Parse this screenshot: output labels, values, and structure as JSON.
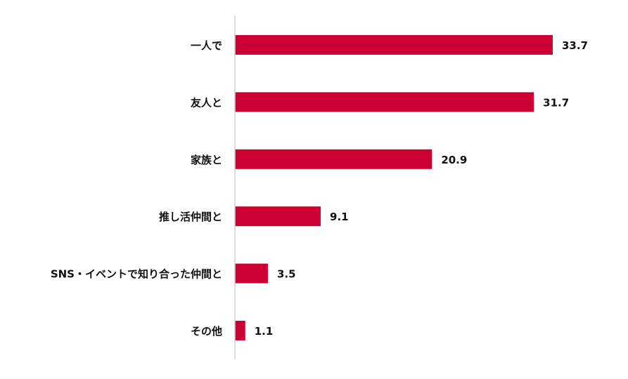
{
  "chart_data": {
    "type": "bar",
    "orientation": "horizontal",
    "categories": [
      "一人で",
      "友人と",
      "家族と",
      "推し活仲間と",
      "SNS・イベントで知り合った仲間と",
      "その他"
    ],
    "values": [
      33.7,
      31.7,
      20.9,
      9.1,
      3.5,
      1.1
    ],
    "value_labels": [
      "33.7",
      "31.7",
      "20.9",
      "9.1",
      "3.5",
      "1.1"
    ],
    "title": "",
    "xlabel": "",
    "ylabel": "",
    "xlim": [
      0,
      40
    ],
    "grid": false,
    "legend": "none",
    "colors": {
      "bar": "#CC0033",
      "axis": "#D0D0D0"
    }
  }
}
